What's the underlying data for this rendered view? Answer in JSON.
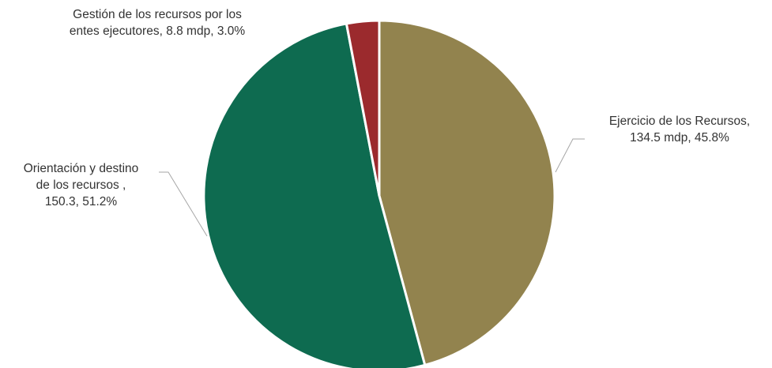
{
  "chart_data": {
    "type": "pie",
    "start": "12 o'clock",
    "direction": "clockwise",
    "slices": [
      {
        "name": "Ejercicio de los Recursos",
        "value": 134.5,
        "percent": 45.8,
        "color": "#92834E",
        "label_lines": [
          "Ejercicio de los Recursos,",
          "134.5 mdp, 45.8%"
        ]
      },
      {
        "name": "Orientación y destino de los recursos",
        "value": 150.3,
        "percent": 51.2,
        "color": "#0E6B50",
        "label_lines": [
          "Orientación y destino",
          "de los recursos ,",
          "150.3, 51.2%"
        ]
      },
      {
        "name": "Gestión de los recursos por los entes ejecutores",
        "value": 8.8,
        "percent": 3.0,
        "color": "#9B2A2D",
        "label_lines": [
          "Gestión de los recursos por los",
          "entes ejecutores, 8.8 mdp, 3.0%"
        ]
      }
    ]
  }
}
